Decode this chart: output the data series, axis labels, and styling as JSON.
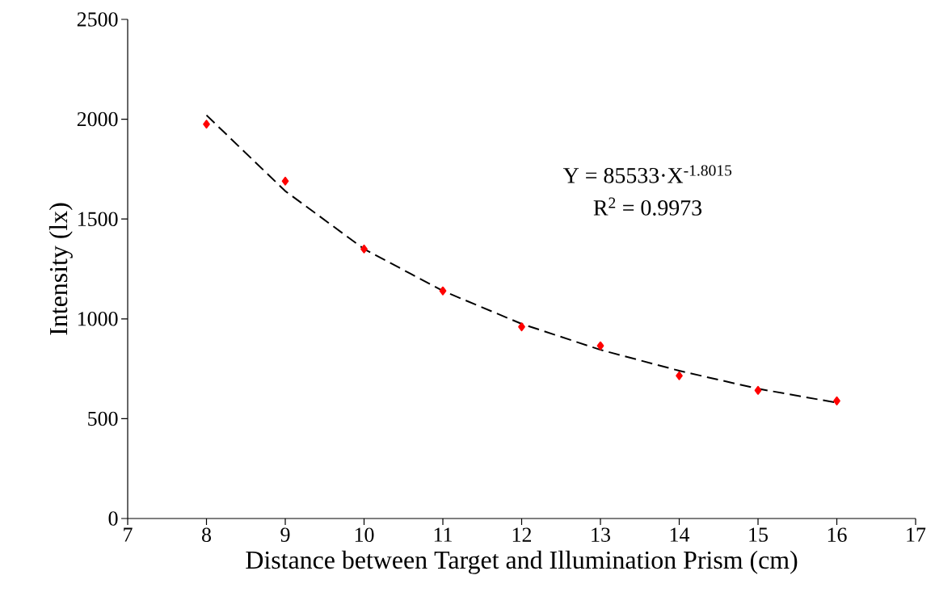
{
  "chart_data": {
    "type": "scatter",
    "xlabel": "Distance between Target and Illumination Prism (cm)",
    "ylabel": "Intensity (lx)",
    "xlim": [
      7,
      17
    ],
    "xticks": [
      7,
      8,
      9,
      10,
      11,
      12,
      13,
      14,
      15,
      16,
      17
    ],
    "ylim": [
      0,
      2500
    ],
    "yticks": [
      0,
      500,
      1000,
      1500,
      2000,
      2500
    ],
    "x": [
      8,
      9,
      10,
      11,
      12,
      13,
      14,
      15,
      16
    ],
    "grid": false,
    "series": [
      {
        "color": "#ff0000",
        "marker": "diamond",
        "values": [
          1975,
          1690,
          1350,
          1140,
          960,
          865,
          715,
          642,
          589
        ]
      },
      {
        "type": "line",
        "color": "#000000",
        "marker": "none",
        "line_style": "dashed",
        "x": [
          8,
          9,
          10,
          11,
          12,
          13,
          14,
          15,
          16
        ],
        "values": [
          2020,
          1640,
          1350,
          1140,
          975,
          845,
          740,
          650,
          580
        ]
      }
    ],
    "annotations": [
      "Y = 85533·X$^{-1.8015}$",
      "R$^{2}$ = 0.9973"
    ]
  }
}
